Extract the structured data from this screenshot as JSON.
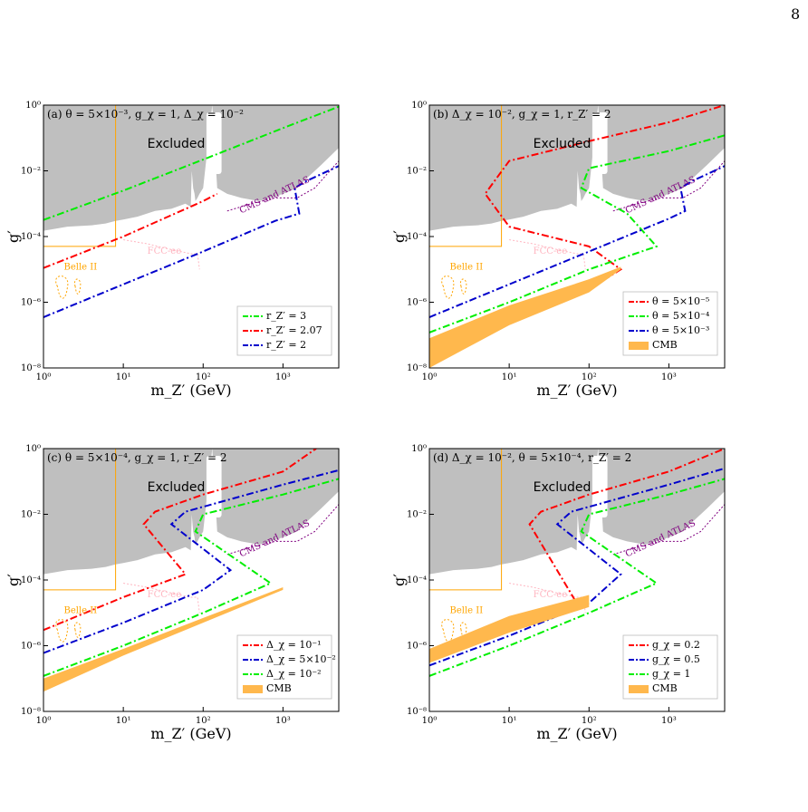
{
  "page_number": "8",
  "colors": {
    "excluded": "#bfbfbf",
    "belle": "#ffa500",
    "fcc": "#ffb6c1",
    "cms": "#800080",
    "cmb": "#ffb84d",
    "red": "#ff0000",
    "green": "#00ee00",
    "blue": "#0000cc"
  },
  "labels": {
    "excluded": "Excluded",
    "belle": "Belle II",
    "fcc": "FCC-ee",
    "cms": "CMS and ATLAS",
    "xlabel": "m_{Z'} (GeV)",
    "ylabel": "g'"
  },
  "chart_data": [
    {
      "type": "line",
      "panel": "(a)",
      "title": "(a) θ = 5×10⁻³, g_χ = 1, Δ_χ = 10⁻²",
      "xscale": "log",
      "yscale": "log",
      "xlim": [
        1,
        5000
      ],
      "ylim": [
        1e-08,
        1
      ],
      "xticks": [
        "10⁰",
        "10¹",
        "10²",
        "10³"
      ],
      "yticks": [
        "10⁻⁸",
        "10⁻⁶",
        "10⁻⁴",
        "10⁻²",
        "10⁰"
      ],
      "xlabel": "m_Z′ (GeV)",
      "ylabel": "g′",
      "legend_position": "center-right",
      "series": [
        {
          "name": "r_Z′ = 3",
          "color": "#00ee00",
          "x": [
            1,
            10,
            100,
            1000,
            5000
          ],
          "y": [
            0.00032,
            0.0025,
            0.022,
            0.2,
            0.9
          ]
        },
        {
          "name": "r_Z′ = 2.07",
          "color": "#ff0000",
          "x": [
            1,
            10,
            100,
            150
          ],
          "y": [
            1.1e-05,
            0.0001,
            0.0012,
            0.002
          ]
        },
        {
          "name": "r_Z′ = 2",
          "color": "#0000cc",
          "x": [
            1,
            10,
            100,
            800,
            1600,
            1400,
            2000,
            5000
          ],
          "y": [
            3.5e-07,
            3.5e-06,
            3.5e-05,
            0.0003,
            0.0005,
            0.003,
            0.005,
            0.014
          ]
        }
      ]
    },
    {
      "type": "line",
      "panel": "(b)",
      "title": "(b) Δ_χ = 10⁻², g_χ = 1, r_Z′ = 2",
      "xscale": "log",
      "yscale": "log",
      "xlim": [
        1,
        5000
      ],
      "ylim": [
        1e-08,
        1
      ],
      "xticks": [
        "10⁰",
        "10¹",
        "10²",
        "10³"
      ],
      "yticks": [
        "10⁻⁸",
        "10⁻⁶",
        "10⁻⁴",
        "10⁻²",
        "10⁰"
      ],
      "xlabel": "m_Z′ (GeV)",
      "ylabel": "g′",
      "legend_position": "lower-right",
      "series": [
        {
          "name": "θ = 5×10⁻⁵",
          "color": "#ff0000",
          "x": [
            1,
            10,
            100,
            250,
            100,
            10,
            5,
            10,
            100,
            1000,
            5000
          ],
          "y": [
            3e-08,
            2.5e-07,
            2.5e-06,
            1e-05,
            5e-05,
            0.0002,
            0.002,
            0.02,
            0.08,
            0.3,
            1.0
          ]
        },
        {
          "name": "θ = 5×10⁻⁴",
          "color": "#00ee00",
          "x": [
            1,
            10,
            100,
            700,
            300,
            80,
            100,
            1000,
            5000
          ],
          "y": [
            1.2e-07,
            1e-06,
            1e-05,
            5e-05,
            0.0005,
            0.003,
            0.012,
            0.04,
            0.12
          ]
        },
        {
          "name": "θ = 5×10⁻³",
          "color": "#0000cc",
          "x": [
            1,
            10,
            100,
            1000,
            1600,
            1400,
            2000,
            5000
          ],
          "y": [
            3.5e-07,
            3.5e-06,
            3.5e-05,
            0.00035,
            0.0006,
            0.003,
            0.005,
            0.014
          ]
        },
        {
          "name": "CMB",
          "color": "#ffb84d",
          "type": "area",
          "x": [
            1,
            10,
            100,
            250
          ],
          "y_low": [
            1e-08,
            2e-07,
            2e-06,
            1e-05
          ],
          "y_high": [
            8e-08,
            8e-07,
            5e-06,
            1.2e-05
          ]
        }
      ]
    },
    {
      "type": "line",
      "panel": "(c)",
      "title": "(c) θ = 5×10⁻⁴, g_χ = 1, r_Z′ = 2",
      "xscale": "log",
      "yscale": "log",
      "xlim": [
        1,
        5000
      ],
      "ylim": [
        1e-08,
        1
      ],
      "xticks": [
        "10⁰",
        "10¹",
        "10²",
        "10³"
      ],
      "yticks": [
        "10⁻⁸",
        "10⁻⁶",
        "10⁻⁴",
        "10⁻²",
        "10⁰"
      ],
      "xlabel": "m_Z′ (GeV)",
      "ylabel": "g′",
      "legend_position": "lower-right",
      "series": [
        {
          "name": "Δ_χ = 10⁻¹",
          "color": "#ff0000",
          "x": [
            1,
            10,
            60,
            18,
            25,
            100,
            1000,
            2600
          ],
          "y": [
            3e-06,
            3e-05,
            0.00015,
            0.005,
            0.012,
            0.04,
            0.2,
            1.0
          ]
        },
        {
          "name": "Δ_χ = 5×10⁻²",
          "color": "#0000cc",
          "x": [
            1,
            10,
            100,
            220,
            40,
            60,
            1000,
            5000
          ],
          "y": [
            6e-07,
            5e-06,
            5e-05,
            0.0002,
            0.005,
            0.012,
            0.08,
            0.22
          ]
        },
        {
          "name": "Δ_χ = 10⁻²",
          "color": "#00ee00",
          "x": [
            1,
            10,
            100,
            700,
            80,
            100,
            1000,
            5000
          ],
          "y": [
            1.2e-07,
            1e-06,
            1e-05,
            8e-05,
            0.003,
            0.01,
            0.04,
            0.12
          ]
        },
        {
          "name": "CMB",
          "color": "#ffb84d",
          "type": "area",
          "x": [
            1,
            10,
            100,
            1000
          ],
          "y_low": [
            4e-08,
            5e-07,
            5e-06,
            5e-05
          ],
          "y_high": [
            1e-07,
            8e-07,
            7e-06,
            6e-05
          ]
        }
      ]
    },
    {
      "type": "line",
      "panel": "(d)",
      "title": "(d) Δ_χ = 10⁻², θ = 5×10⁻⁴, r_Z′ = 2",
      "xscale": "log",
      "yscale": "log",
      "xlim": [
        1,
        5000
      ],
      "ylim": [
        1e-08,
        1
      ],
      "xticks": [
        "10⁰",
        "10¹",
        "10²",
        "10³"
      ],
      "yticks": [
        "10⁻⁸",
        "10⁻⁶",
        "10⁻⁴",
        "10⁻²",
        "10⁰"
      ],
      "xlabel": "m_Z′ (GeV)",
      "ylabel": "g′",
      "legend_position": "lower-right",
      "series": [
        {
          "name": "g_χ = 0.2",
          "color": "#ff0000",
          "x": [
            1,
            10,
            70,
            18,
            25,
            100,
            1000,
            5000
          ],
          "y": [
            5e-07,
            3e-06,
            2e-05,
            0.005,
            0.012,
            0.04,
            0.2,
            1.0
          ]
        },
        {
          "name": "g_χ = 0.5",
          "color": "#0000cc",
          "x": [
            1,
            10,
            100,
            250,
            40,
            60,
            1000,
            5000
          ],
          "y": [
            2.5e-07,
            2e-06,
            2e-05,
            0.00015,
            0.005,
            0.012,
            0.08,
            0.25
          ]
        },
        {
          "name": "g_χ = 1",
          "color": "#00ee00",
          "x": [
            1,
            10,
            100,
            700,
            80,
            100,
            1000,
            5000
          ],
          "y": [
            1.2e-07,
            1e-06,
            1e-05,
            8e-05,
            0.003,
            0.01,
            0.04,
            0.12
          ]
        },
        {
          "name": "CMB",
          "color": "#ffb84d",
          "type": "area",
          "x": [
            1,
            10,
            100
          ],
          "y_low": [
            3e-07,
            2.5e-06,
            1.5e-05
          ],
          "y_high": [
            8e-07,
            8e-06,
            3.5e-05
          ]
        }
      ]
    }
  ]
}
